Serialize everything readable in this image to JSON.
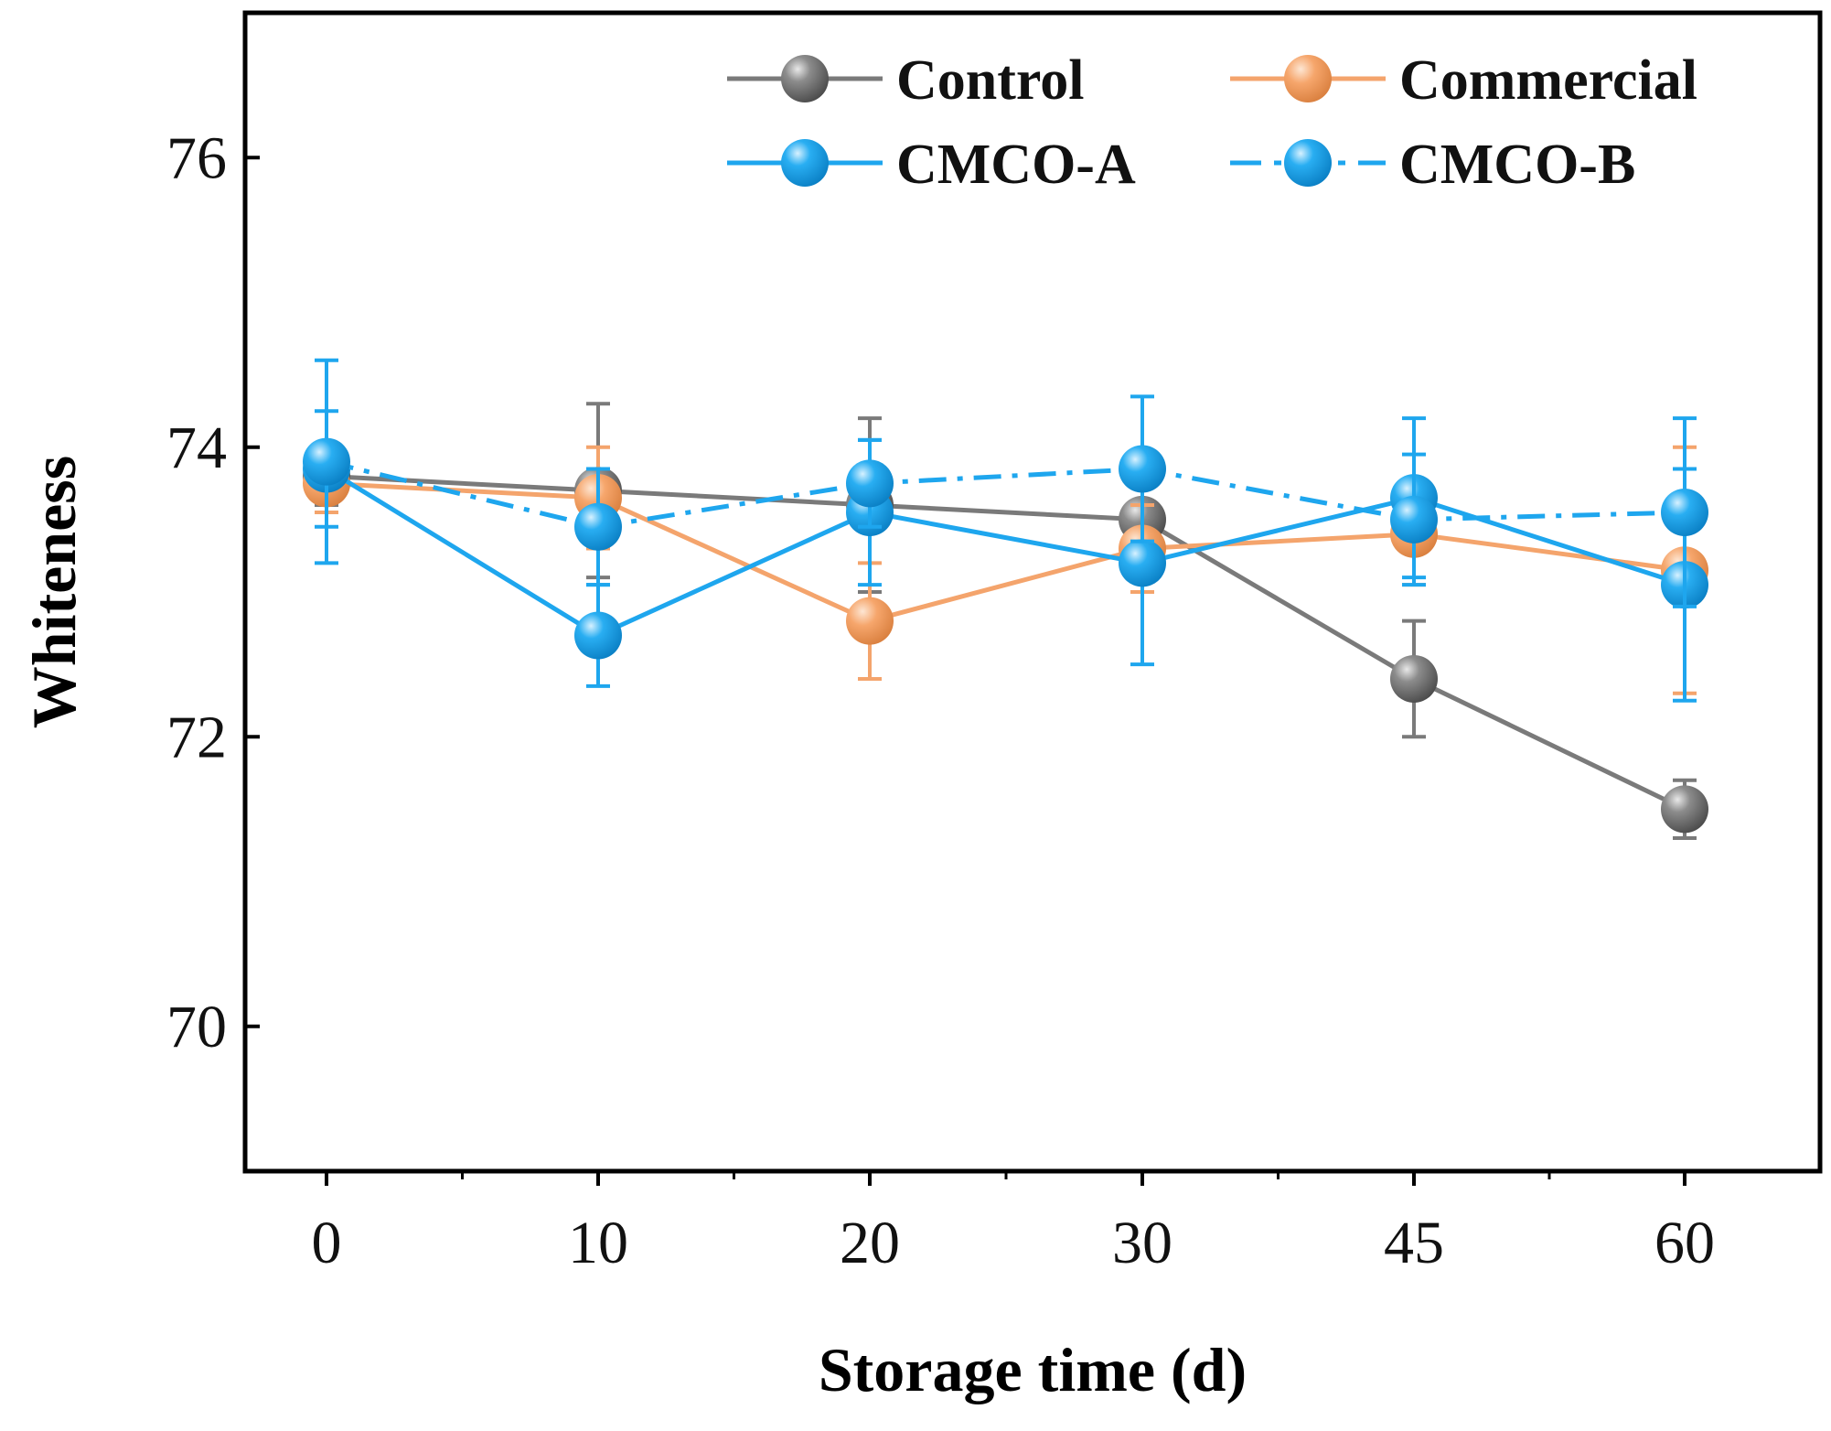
{
  "chart_data": {
    "type": "line",
    "title": "",
    "xlabel": "Storage time (d)",
    "ylabel": "Whiteness",
    "categories": [
      "0",
      "10",
      "20",
      "30",
      "45",
      "60"
    ],
    "ylim": [
      69,
      77
    ],
    "yticks": [
      70,
      72,
      74,
      76
    ],
    "grid": false,
    "legend_position": "top-right",
    "error_bars": true,
    "series": [
      {
        "name": "Control",
        "color": "#7a7a7a",
        "line_style": "solid",
        "values": [
          73.8,
          73.7,
          73.6,
          73.5,
          72.4,
          71.5
        ],
        "errors": [
          0.2,
          0.6,
          0.6,
          0.3,
          0.4,
          0.2
        ]
      },
      {
        "name": "Commercial",
        "color": "#f4a46c",
        "line_style": "solid",
        "values": [
          73.75,
          73.65,
          72.8,
          73.3,
          73.4,
          73.15
        ],
        "errors": [
          0.2,
          0.35,
          0.4,
          0.3,
          0.35,
          0.85
        ]
      },
      {
        "name": "CMCO-A",
        "color": "#1ea6ee",
        "line_style": "solid",
        "values": [
          73.85,
          72.7,
          73.55,
          73.2,
          73.65,
          73.05
        ],
        "errors": [
          0.4,
          0.35,
          0.5,
          0.7,
          0.55,
          0.8
        ]
      },
      {
        "name": "CMCO-B",
        "color": "#1ea6ee",
        "line_style": "dash-dot",
        "values": [
          73.9,
          73.45,
          73.75,
          73.85,
          73.5,
          73.55
        ],
        "errors": [
          0.7,
          0.4,
          0.3,
          0.5,
          0.45,
          0.65
        ]
      }
    ]
  }
}
